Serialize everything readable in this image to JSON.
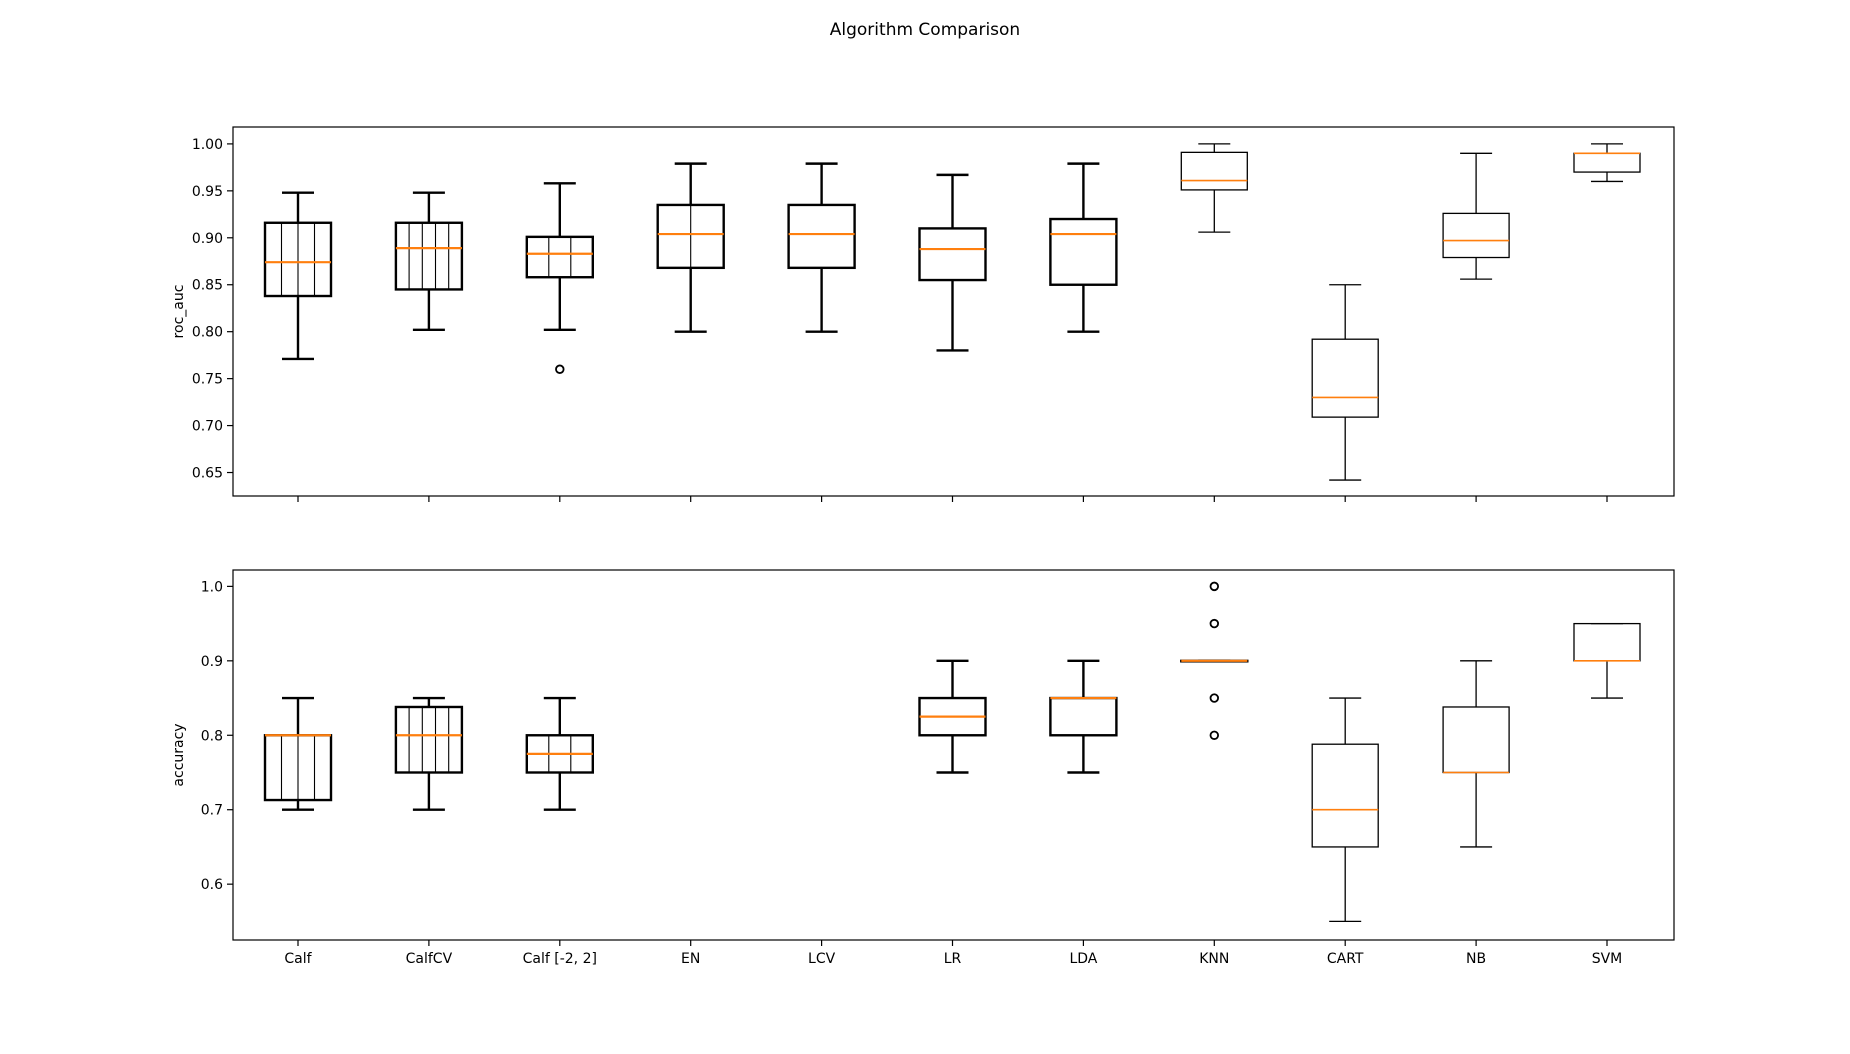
{
  "title": "Algorithm Comparison",
  "colors": {
    "box": "#000000",
    "median": "#ff7f0e",
    "background": "#ffffff"
  },
  "chart_data": [
    {
      "type": "box",
      "ylabel": "roc_auc",
      "ylim": [
        0.625,
        1.018
      ],
      "yticks": [
        0.65,
        0.7,
        0.75,
        0.8,
        0.85,
        0.9,
        0.95,
        1.0
      ],
      "ytick_labels": [
        "0.65",
        "0.70",
        "0.75",
        "0.80",
        "0.85",
        "0.90",
        "0.95",
        "1.00"
      ],
      "show_x_tick_labels": false,
      "categories": [
        "Calf",
        "CalfCV",
        "Calf [-2, 2]",
        "EN",
        "LCV",
        "LR",
        "LDA",
        "KNN",
        "CART",
        "NB",
        "SVM"
      ],
      "boxes": [
        {
          "whislo": 0.771,
          "q1": 0.838,
          "med": 0.874,
          "q3": 0.916,
          "whishi": 0.948,
          "fliers": [],
          "inner_lines": 3,
          "bold": true
        },
        {
          "whislo": 0.802,
          "q1": 0.845,
          "med": 0.889,
          "q3": 0.916,
          "whishi": 0.948,
          "fliers": [],
          "inner_lines": 4,
          "bold": true
        },
        {
          "whislo": 0.802,
          "q1": 0.858,
          "med": 0.883,
          "q3": 0.901,
          "whishi": 0.958,
          "fliers": [
            0.76
          ],
          "inner_lines": 2,
          "bold": true
        },
        {
          "whislo": 0.8,
          "q1": 0.868,
          "med": 0.904,
          "q3": 0.935,
          "whishi": 0.979,
          "fliers": [],
          "inner_lines": 1,
          "bold": true
        },
        {
          "whislo": 0.8,
          "q1": 0.868,
          "med": 0.904,
          "q3": 0.935,
          "whishi": 0.979,
          "fliers": [],
          "inner_lines": 0,
          "bold": true
        },
        {
          "whislo": 0.78,
          "q1": 0.855,
          "med": 0.888,
          "q3": 0.91,
          "whishi": 0.967,
          "fliers": [],
          "inner_lines": 0,
          "bold": true
        },
        {
          "whislo": 0.8,
          "q1": 0.85,
          "med": 0.904,
          "q3": 0.92,
          "whishi": 0.979,
          "fliers": [],
          "inner_lines": 0,
          "bold": true
        },
        {
          "whislo": 0.906,
          "q1": 0.951,
          "med": 0.961,
          "q3": 0.991,
          "whishi": 1.0,
          "fliers": [],
          "inner_lines": 0,
          "bold": false
        },
        {
          "whislo": 0.642,
          "q1": 0.709,
          "med": 0.73,
          "q3": 0.792,
          "whishi": 0.85,
          "fliers": [],
          "inner_lines": 0,
          "bold": false
        },
        {
          "whislo": 0.856,
          "q1": 0.879,
          "med": 0.897,
          "q3": 0.926,
          "whishi": 0.99,
          "fliers": [],
          "inner_lines": 0,
          "bold": false
        },
        {
          "whislo": 0.96,
          "q1": 0.97,
          "med": 0.99,
          "q3": 0.99,
          "whishi": 1.0,
          "fliers": [],
          "inner_lines": 0,
          "bold": false
        }
      ]
    },
    {
      "type": "box",
      "ylabel": "accuracy",
      "ylim": [
        0.525,
        1.022
      ],
      "yticks": [
        0.6,
        0.7,
        0.8,
        0.9,
        1.0
      ],
      "ytick_labels": [
        "0.6",
        "0.7",
        "0.8",
        "0.9",
        "1.0"
      ],
      "show_x_tick_labels": true,
      "categories": [
        "Calf",
        "CalfCV",
        "Calf [-2, 2]",
        "EN",
        "LCV",
        "LR",
        "LDA",
        "KNN",
        "CART",
        "NB",
        "SVM"
      ],
      "boxes": [
        {
          "whislo": 0.7,
          "q1": 0.713,
          "med": 0.8,
          "q3": 0.8,
          "whishi": 0.85,
          "fliers": [],
          "inner_lines": 3,
          "bold": true
        },
        {
          "whislo": 0.7,
          "q1": 0.75,
          "med": 0.8,
          "q3": 0.838,
          "whishi": 0.85,
          "fliers": [],
          "inner_lines": 4,
          "bold": true
        },
        {
          "whislo": 0.7,
          "q1": 0.75,
          "med": 0.775,
          "q3": 0.8,
          "whishi": 0.85,
          "fliers": [],
          "inner_lines": 2,
          "bold": true
        },
        null,
        null,
        {
          "whislo": 0.75,
          "q1": 0.8,
          "med": 0.825,
          "q3": 0.85,
          "whishi": 0.9,
          "fliers": [],
          "inner_lines": 0,
          "bold": true
        },
        {
          "whislo": 0.75,
          "q1": 0.8,
          "med": 0.85,
          "q3": 0.85,
          "whishi": 0.9,
          "fliers": [],
          "inner_lines": 0,
          "bold": true
        },
        {
          "whislo": 0.9,
          "q1": 0.9,
          "med": 0.9,
          "q3": 0.9,
          "whishi": 0.9,
          "fliers": [
            0.8,
            0.85,
            0.95,
            1.0
          ],
          "inner_lines": 0,
          "bold": true
        },
        {
          "whislo": 0.55,
          "q1": 0.65,
          "med": 0.7,
          "q3": 0.788,
          "whishi": 0.85,
          "fliers": [],
          "inner_lines": 0,
          "bold": false
        },
        {
          "whislo": 0.65,
          "q1": 0.75,
          "med": 0.75,
          "q3": 0.838,
          "whishi": 0.9,
          "fliers": [],
          "inner_lines": 0,
          "bold": false
        },
        {
          "whislo": 0.85,
          "q1": 0.9,
          "med": 0.9,
          "q3": 0.95,
          "whishi": 0.95,
          "fliers": [],
          "inner_lines": 0,
          "bold": false
        }
      ]
    }
  ]
}
